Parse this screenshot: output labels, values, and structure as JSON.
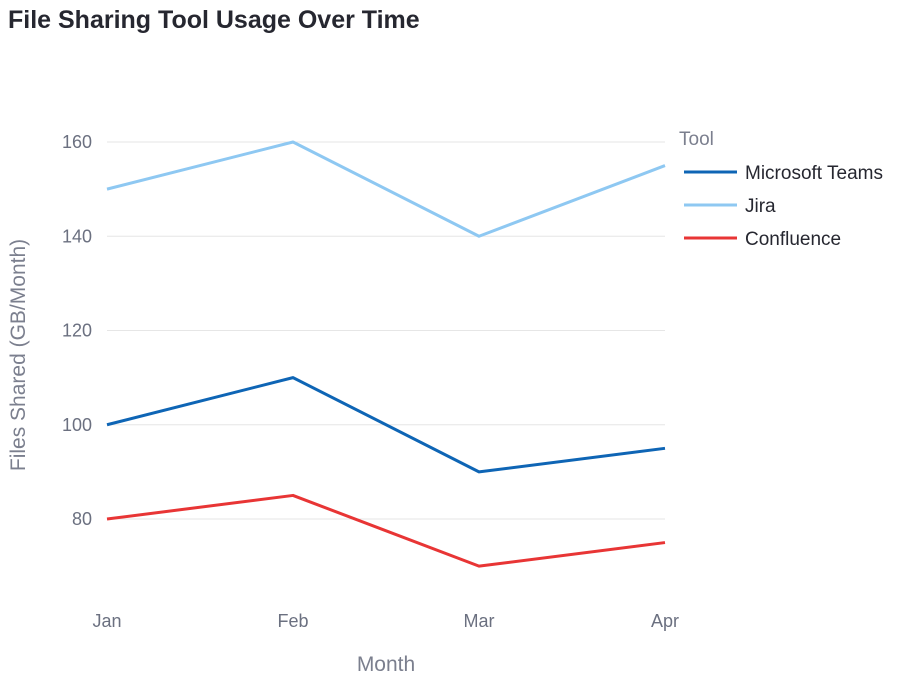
{
  "chart_data": {
    "type": "line",
    "title": "File Sharing Tool Usage Over Time",
    "xlabel": "Month",
    "ylabel": "Files Shared (GB/Month)",
    "categories": [
      "Jan",
      "Feb",
      "Mar",
      "Apr"
    ],
    "ylim": [
      62,
      170
    ],
    "yticks": [
      80,
      100,
      120,
      140,
      160
    ],
    "grid": true,
    "legend": {
      "title": "Tool",
      "placement": "top-right"
    },
    "series": [
      {
        "name": "Microsoft Teams",
        "values": [
          100,
          110,
          90,
          95
        ],
        "color": "#0e65b5"
      },
      {
        "name": "Jira",
        "values": [
          150,
          160,
          140,
          155
        ],
        "color": "#8ec8f2"
      },
      {
        "name": "Confluence",
        "values": [
          80,
          85,
          70,
          75
        ],
        "color": "#e83535"
      }
    ]
  }
}
